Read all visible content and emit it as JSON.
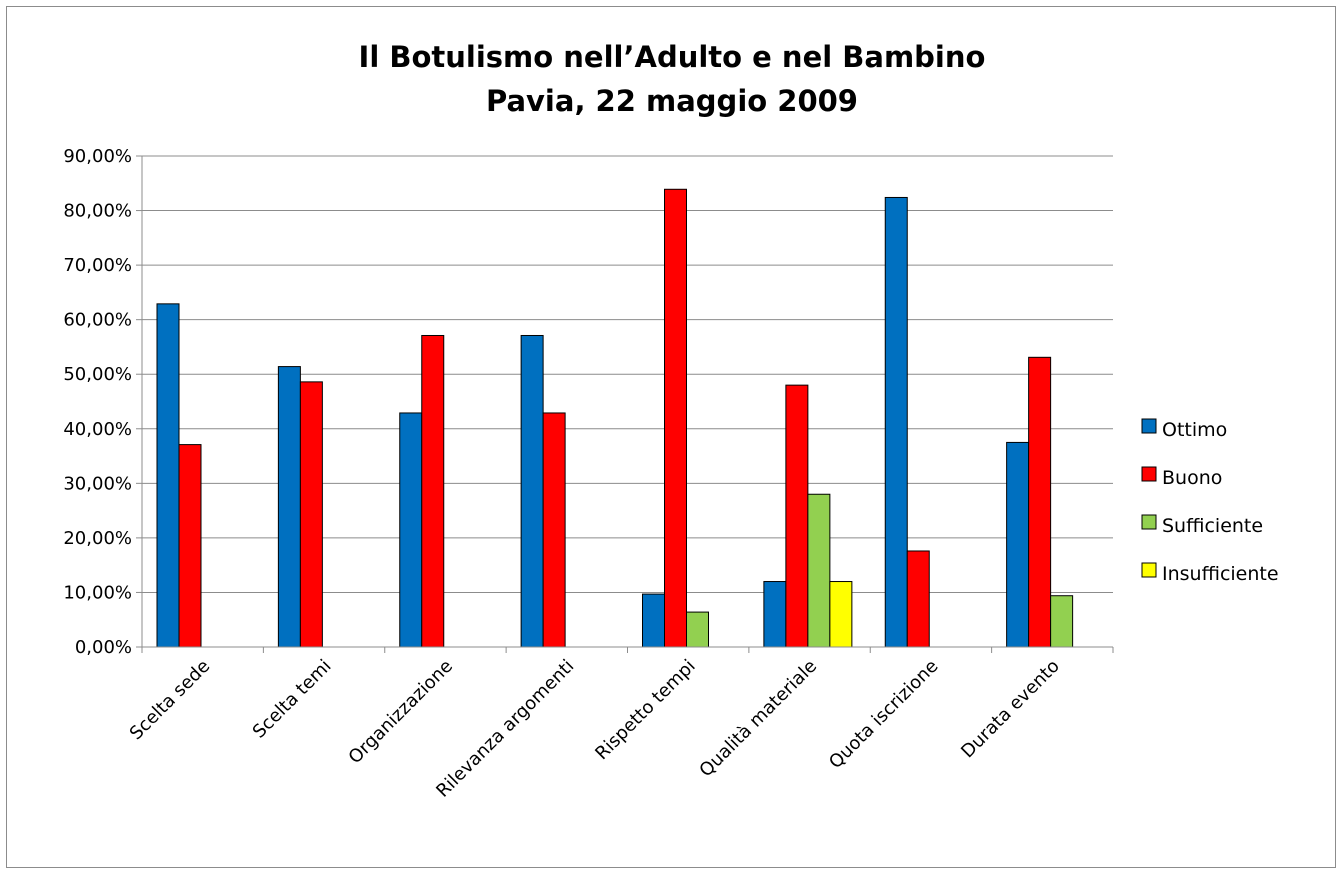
{
  "chart_data": {
    "type": "bar",
    "title": [
      "Il Botulismo nell’Adulto e nel Bambino",
      "Pavia, 22 maggio 2009"
    ],
    "categories": [
      "Scelta sede",
      "Scelta temi",
      "Organizzazione",
      "Rilevanza argomenti",
      "Rispetto tempi",
      "Qualità materiale",
      "Quota iscrizione",
      "Durata evento"
    ],
    "series": [
      {
        "name": "Ottimo",
        "color": "#0070c0",
        "values": [
          62.9,
          51.4,
          42.9,
          57.1,
          9.7,
          12.0,
          82.4,
          37.5
        ]
      },
      {
        "name": "Buono",
        "color": "#ff0000",
        "values": [
          37.1,
          48.6,
          57.1,
          42.9,
          83.9,
          48.0,
          17.6,
          53.1
        ]
      },
      {
        "name": "Sufficiente",
        "color": "#92d050",
        "values": [
          0,
          0,
          0,
          0,
          6.4,
          28.0,
          0,
          9.4
        ]
      },
      {
        "name": "Insufficiente",
        "color": "#ffff00",
        "values": [
          0,
          0,
          0,
          0,
          0,
          12.0,
          0,
          0
        ]
      }
    ],
    "y_ticks": [
      "0,00%",
      "10,00%",
      "20,00%",
      "30,00%",
      "40,00%",
      "50,00%",
      "60,00%",
      "70,00%",
      "80,00%",
      "90,00%"
    ],
    "ylim": [
      0,
      90
    ],
    "grid": true,
    "legend_position": "right"
  }
}
